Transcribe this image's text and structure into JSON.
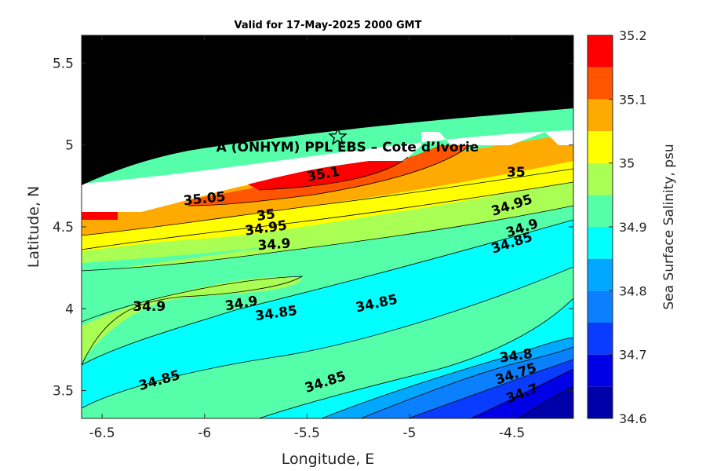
{
  "chart_data": {
    "type": "heatmap",
    "title": "Valid for 17-May-2025 2000 GMT",
    "xlabel": "Longitude, E",
    "ylabel": "Latitude, N",
    "xlim": [
      -6.6,
      -4.2
    ],
    "ylim": [
      3.33,
      5.67
    ],
    "xticks": [
      "-6.5",
      "-6",
      "-5.5",
      "-5",
      "-4.5"
    ],
    "xtick_values": [
      -6.5,
      -6,
      -5.5,
      -5,
      -4.5
    ],
    "yticks": [
      "3.5",
      "4",
      "4.5",
      "5",
      "5.5"
    ],
    "ytick_values": [
      3.5,
      4,
      4.5,
      5,
      5.5
    ],
    "site_label": "A (ONHYM) PPL EBS  – Cote d’Ivorie",
    "site_marker": {
      "lon": -5.35,
      "lat": 5.05,
      "symbol": "star"
    },
    "colorbar": {
      "label": "Sea Surface Salinity, psu",
      "range": [
        34.6,
        35.2
      ],
      "tick_values": [
        34.6,
        34.7,
        34.8,
        34.9,
        35,
        35.1,
        35.2
      ],
      "tick_labels": [
        "34.6",
        "34.7",
        "34.8",
        "34.9",
        "35",
        "35.1",
        "35.2"
      ],
      "levels": [
        34.6,
        34.65,
        34.7,
        34.75,
        34.8,
        34.85,
        34.9,
        34.95,
        35,
        35.05,
        35.1,
        35.15,
        35.2
      ],
      "colors": [
        "#0000aa",
        "#0000e6",
        "#0a3cff",
        "#0a80ff",
        "#00a8ff",
        "#00ffff",
        "#55ffaa",
        "#aaff55",
        "#ffff00",
        "#ffaa00",
        "#ff5500",
        "#ff0000",
        "#aa0000"
      ]
    },
    "land_color": "#000000",
    "no_data_color": "#ffffff",
    "contour_labels": [
      {
        "text": "35.1",
        "lon": -5.42,
        "lat": 4.82,
        "angle": -10
      },
      {
        "text": "35.05",
        "lon": -6.0,
        "lat": 4.67,
        "angle": -6
      },
      {
        "text": "35",
        "lon": -5.7,
        "lat": 4.57,
        "angle": -8
      },
      {
        "text": "34.95",
        "lon": -5.7,
        "lat": 4.49,
        "angle": -8
      },
      {
        "text": "34.9",
        "lon": -5.66,
        "lat": 4.39,
        "angle": -4
      },
      {
        "text": "35",
        "lon": -4.48,
        "lat": 4.83,
        "angle": 0
      },
      {
        "text": "34.95",
        "lon": -4.5,
        "lat": 4.63,
        "angle": -18
      },
      {
        "text": "34.9",
        "lon": -4.45,
        "lat": 4.49,
        "angle": -18
      },
      {
        "text": "34.85",
        "lon": -4.5,
        "lat": 4.4,
        "angle": -18
      },
      {
        "text": "34.9",
        "lon": -6.27,
        "lat": 4.01,
        "angle": 0
      },
      {
        "text": "34.9",
        "lon": -5.82,
        "lat": 4.03,
        "angle": -10
      },
      {
        "text": "34.85",
        "lon": -5.65,
        "lat": 3.97,
        "angle": -8
      },
      {
        "text": "34.85",
        "lon": -5.16,
        "lat": 4.03,
        "angle": -12
      },
      {
        "text": "34.85",
        "lon": -6.22,
        "lat": 3.56,
        "angle": -16
      },
      {
        "text": "34.85",
        "lon": -5.41,
        "lat": 3.55,
        "angle": -18
      },
      {
        "text": "34.8",
        "lon": -4.48,
        "lat": 3.71,
        "angle": -8
      },
      {
        "text": "34.75",
        "lon": -4.48,
        "lat": 3.6,
        "angle": -18
      },
      {
        "text": "34.7",
        "lon": -4.45,
        "lat": 3.48,
        "angle": -20
      }
    ]
  }
}
